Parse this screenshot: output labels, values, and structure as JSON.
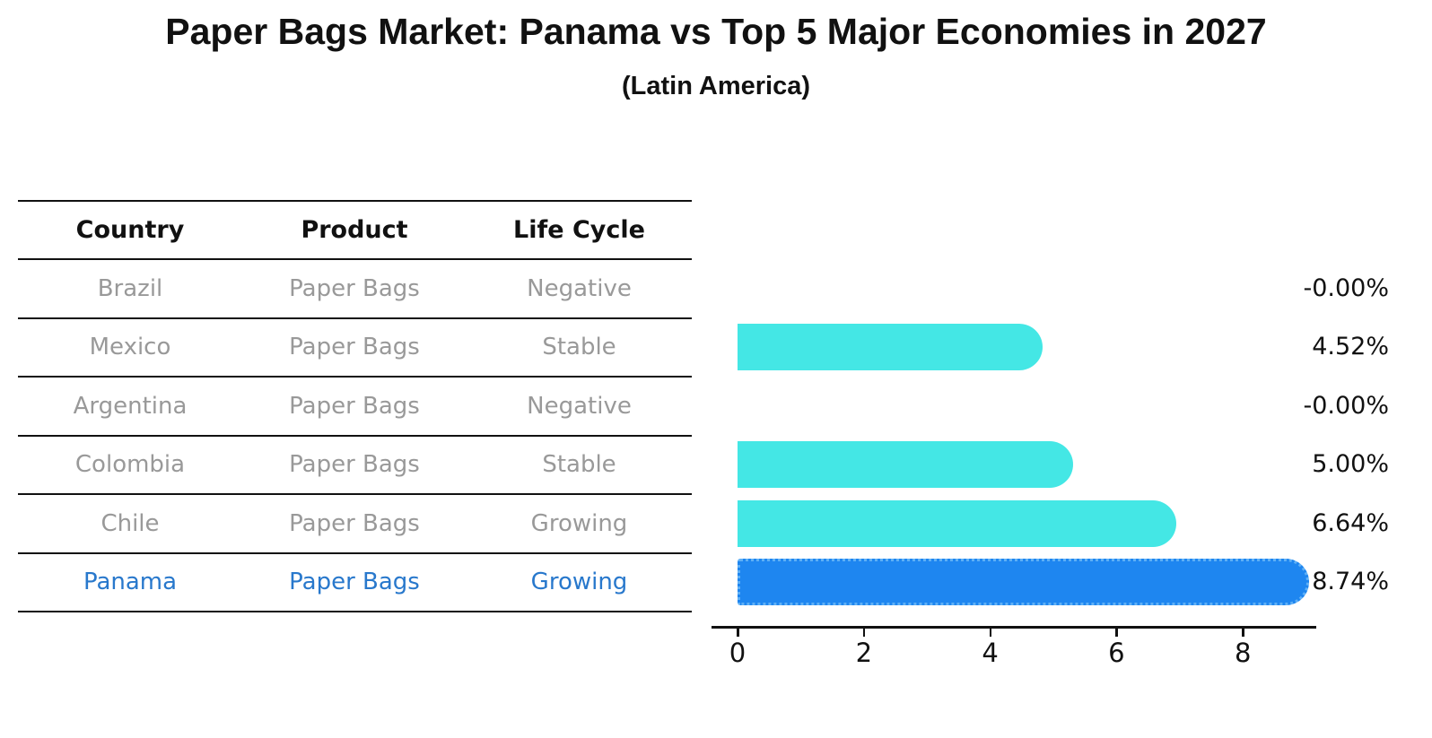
{
  "title": "Paper Bags Market: Panama vs Top 5 Major Economies in 2027",
  "subtitle": "(Latin America)",
  "table": {
    "headers": [
      "Country",
      "Product",
      "Life Cycle"
    ],
    "rows": [
      {
        "country": "Brazil",
        "product": "Paper Bags",
        "life_cycle": "Negative",
        "highlighted": false
      },
      {
        "country": "Mexico",
        "product": "Paper Bags",
        "life_cycle": "Stable",
        "highlighted": false
      },
      {
        "country": "Argentina",
        "product": "Paper Bags",
        "life_cycle": "Negative",
        "highlighted": false
      },
      {
        "country": "Colombia",
        "product": "Paper Bags",
        "life_cycle": "Stable",
        "highlighted": false
      },
      {
        "country": "Chile",
        "product": "Paper Bags",
        "life_cycle": "Growing",
        "highlighted": false
      },
      {
        "country": "Panama",
        "product": "Paper Bags",
        "life_cycle": "Growing",
        "highlighted": true
      }
    ]
  },
  "chart_data": {
    "type": "bar",
    "orientation": "horizontal",
    "title": "Paper Bags Market: Panama vs Top 5 Major Economies in 2027 (Latin America)",
    "categories": [
      "Brazil",
      "Mexico",
      "Argentina",
      "Colombia",
      "Chile",
      "Panama"
    ],
    "values": [
      -0.0,
      4.52,
      -0.0,
      5.0,
      6.64,
      8.74
    ],
    "value_labels": [
      "-0.00%",
      "4.52%",
      "-0.00%",
      "5.00%",
      "6.64%",
      "8.74%"
    ],
    "x_ticks": [
      "0",
      "2",
      "4",
      "6",
      "8"
    ],
    "xlim": [
      0,
      9.3
    ],
    "grid": false,
    "legend": "none",
    "highlight_index": 5
  },
  "colors": {
    "bar": "#44E7E5",
    "highlight_bar": "#1E86F0",
    "highlight_border": "#5FB0F6",
    "highlight_text": "#2878CC",
    "table_text": "#999999",
    "header_text": "#111111",
    "axis": "#111111",
    "background": "#ffffff"
  }
}
